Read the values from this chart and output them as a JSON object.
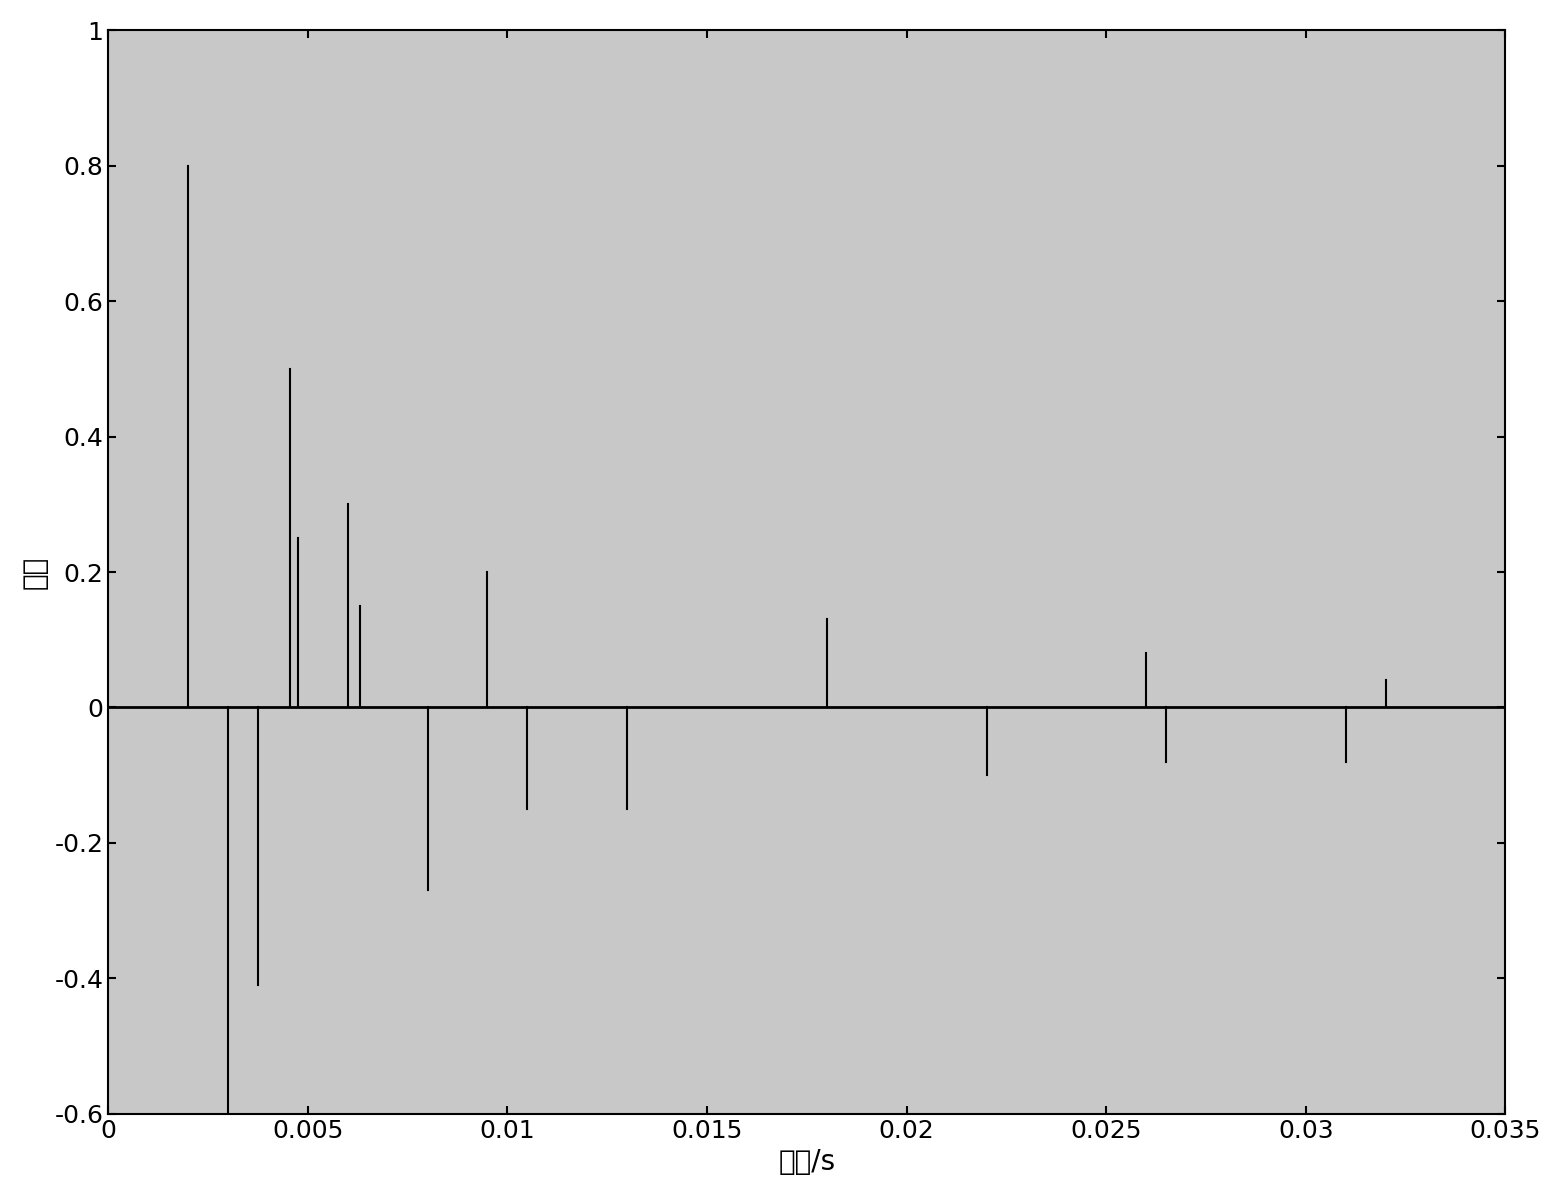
{
  "x": [
    0.002,
    0.003,
    0.00375,
    0.00455,
    0.00475,
    0.006,
    0.0063,
    0.008,
    0.0095,
    0.0105,
    0.013,
    0.018,
    0.022,
    0.026,
    0.0265,
    0.031,
    0.032
  ],
  "y": [
    0.8,
    -0.6,
    -0.41,
    0.5,
    0.25,
    0.3,
    0.15,
    -0.27,
    0.2,
    -0.15,
    -0.15,
    0.13,
    -0.1,
    0.08,
    -0.08,
    -0.08,
    0.04
  ],
  "xlim": [
    0,
    0.035
  ],
  "ylim": [
    -0.6,
    1.0
  ],
  "xlabel": "时间/s",
  "ylabel": "幅度",
  "xlabel_fontsize": 20,
  "ylabel_fontsize": 20,
  "tick_fontsize": 18,
  "line_color": "black",
  "marker_color": "black",
  "background_color": "white",
  "axes_facecolor": "#d3d3d3",
  "stem_linewidth": 1.5,
  "baseline_linewidth": 2.0,
  "xticks": [
    0,
    0.005,
    0.01,
    0.015,
    0.02,
    0.025,
    0.03,
    0.035
  ],
  "yticks": [
    -0.6,
    -0.4,
    -0.2,
    0,
    0.2,
    0.4,
    0.6,
    0.8,
    1.0
  ]
}
